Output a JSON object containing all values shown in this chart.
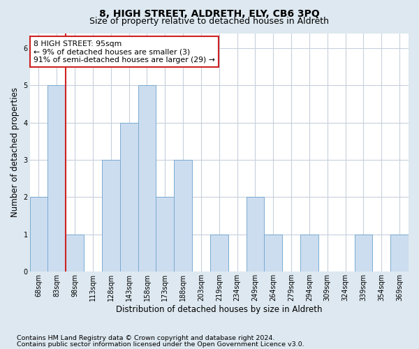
{
  "title1": "8, HIGH STREET, ALDRETH, ELY, CB6 3PQ",
  "title2": "Size of property relative to detached houses in Aldreth",
  "xlabel": "Distribution of detached houses by size in Aldreth",
  "ylabel": "Number of detached properties",
  "categories": [
    "68sqm",
    "83sqm",
    "98sqm",
    "113sqm",
    "128sqm",
    "143sqm",
    "158sqm",
    "173sqm",
    "188sqm",
    "203sqm",
    "219sqm",
    "234sqm",
    "249sqm",
    "264sqm",
    "279sqm",
    "294sqm",
    "309sqm",
    "324sqm",
    "339sqm",
    "354sqm",
    "369sqm"
  ],
  "values": [
    2,
    5,
    1,
    0,
    3,
    4,
    5,
    2,
    3,
    0,
    1,
    0,
    2,
    1,
    0,
    1,
    0,
    0,
    1,
    0,
    1
  ],
  "bar_color": "#ccddf0",
  "bar_edge_color": "#7aaad0",
  "grid_color": "#c8d0dc",
  "vline_color": "#cc2222",
  "annotation_text": "8 HIGH STREET: 95sqm\n← 9% of detached houses are smaller (3)\n91% of semi-detached houses are larger (29) →",
  "annotation_box_color": "#ffffff",
  "annotation_box_edge_color": "#cc2222",
  "footer1": "Contains HM Land Registry data © Crown copyright and database right 2024.",
  "footer2": "Contains public sector information licensed under the Open Government Licence v3.0.",
  "ylim": [
    0,
    6.4
  ],
  "yticks": [
    0,
    1,
    2,
    3,
    4,
    5,
    6
  ],
  "fig_background_color": "#dde8f0",
  "plot_background_color": "#ffffff",
  "title_fontsize": 10,
  "subtitle_fontsize": 9,
  "axis_label_fontsize": 8.5,
  "tick_fontsize": 7,
  "footer_fontsize": 6.8,
  "annotation_fontsize": 7.8
}
